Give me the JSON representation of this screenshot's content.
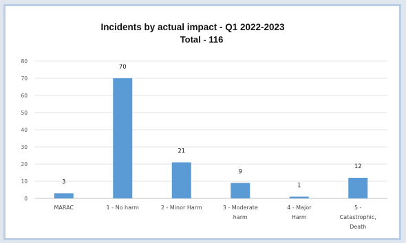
{
  "chart_data": {
    "type": "bar",
    "title": "Incidents by actual impact - Q1 2022-2023",
    "subtitle": "Total - 116",
    "categories": [
      [
        "MARAC"
      ],
      [
        "1 - No harm"
      ],
      [
        "2 - Minor Harm"
      ],
      [
        "3 - Moderate",
        "harm"
      ],
      [
        "4 - Major",
        "Harm"
      ],
      [
        "5 -",
        "Catastrophic,",
        "Death"
      ]
    ],
    "values": [
      3,
      70,
      21,
      9,
      1,
      12
    ],
    "data_labels": [
      "3",
      "70",
      "21",
      "9",
      "1",
      "12"
    ],
    "yticks": [
      "0",
      "10",
      "20",
      "30",
      "40",
      "50",
      "60",
      "70",
      "80"
    ],
    "ylim": [
      0,
      80
    ],
    "grid": true,
    "legend": "none",
    "bar_color": "#5b9bd5"
  }
}
